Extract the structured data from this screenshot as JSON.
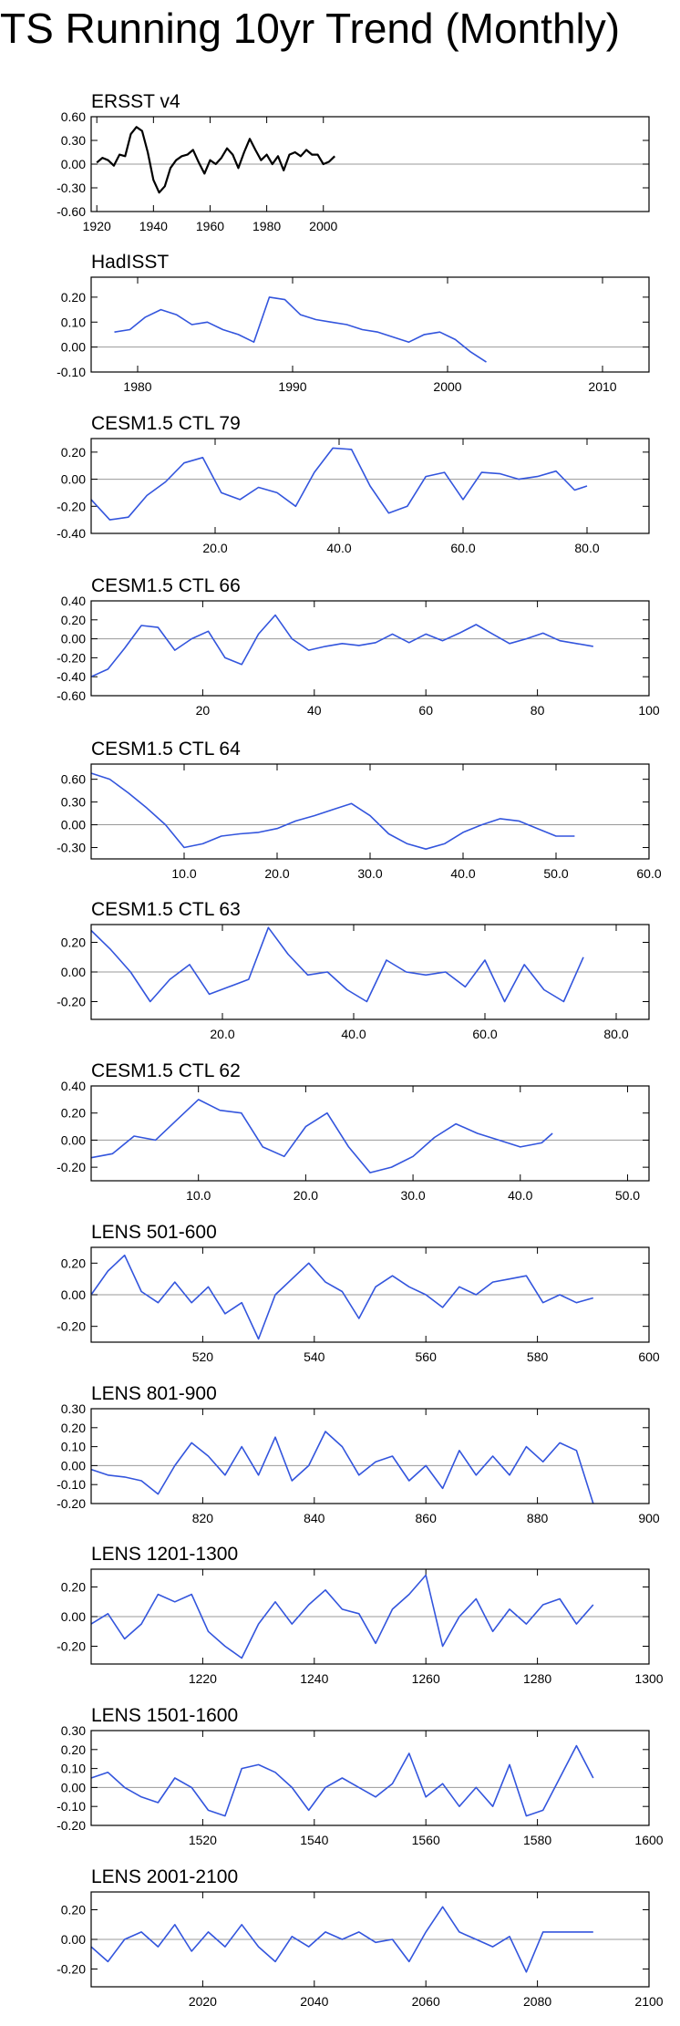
{
  "page_title": "TS Running 10yr Trend (Monthly)",
  "colors": {
    "obs_line": "#000000",
    "model_line": "#3355dd",
    "zero_line": "#999999",
    "frame": "#000000"
  },
  "chart_data": [
    {
      "type": "line",
      "title": "ERSST v4",
      "line_color": "#000000",
      "xlim": [
        1918,
        2115
      ],
      "ylim": [
        -0.6,
        0.6
      ],
      "xticks": [
        1920,
        1940,
        1960,
        1980,
        2000
      ],
      "yticks": [
        0.6,
        0.3,
        0.0,
        -0.3,
        -0.6
      ],
      "xtick_labels": [
        "1920",
        "1940",
        "1960",
        "1980",
        "2000"
      ],
      "ytick_labels": [
        "0.60",
        "0.30",
        "0.00",
        "-0.30",
        "-0.60"
      ],
      "x": [
        1920,
        1922,
        1924,
        1926,
        1928,
        1930,
        1932,
        1934,
        1936,
        1938,
        1940,
        1942,
        1944,
        1946,
        1948,
        1950,
        1952,
        1954,
        1956,
        1958,
        1960,
        1962,
        1964,
        1966,
        1968,
        1970,
        1972,
        1974,
        1976,
        1978,
        1980,
        1982,
        1984,
        1986,
        1988,
        1990,
        1992,
        1994,
        1996,
        1998,
        2000,
        2002,
        2004
      ],
      "y": [
        0.02,
        0.08,
        0.05,
        -0.02,
        0.12,
        0.1,
        0.38,
        0.47,
        0.42,
        0.15,
        -0.2,
        -0.36,
        -0.28,
        -0.05,
        0.05,
        0.1,
        0.12,
        0.18,
        0.02,
        -0.12,
        0.05,
        0.0,
        0.08,
        0.2,
        0.12,
        -0.05,
        0.15,
        0.32,
        0.18,
        0.05,
        0.12,
        0.0,
        0.1,
        -0.08,
        0.12,
        0.15,
        0.1,
        0.18,
        0.12,
        0.12,
        0.0,
        0.03,
        0.1
      ]
    },
    {
      "type": "line",
      "title": "HadISST",
      "line_color": "#3355dd",
      "xlim": [
        1977,
        2013
      ],
      "ylim": [
        -0.1,
        0.28
      ],
      "xticks": [
        1980,
        1990,
        2000,
        2010
      ],
      "yticks": [
        0.2,
        0.1,
        0.0,
        -0.1
      ],
      "xtick_labels": [
        "1980",
        "1990",
        "2000",
        "2010"
      ],
      "ytick_labels": [
        "0.20",
        "0.10",
        "0.00",
        "-0.10"
      ],
      "x": [
        1978.5,
        1979.5,
        1980.5,
        1981.5,
        1982.5,
        1983.5,
        1984.5,
        1985.5,
        1986.5,
        1987.5,
        1988.5,
        1989.5,
        1990.5,
        1991.5,
        1992.5,
        1993.5,
        1994.5,
        1995.5,
        1996.5,
        1997.5,
        1998.5,
        1999.5,
        2000.5,
        2001.5,
        2002.5
      ],
      "y": [
        0.06,
        0.07,
        0.12,
        0.15,
        0.13,
        0.09,
        0.1,
        0.07,
        0.05,
        0.02,
        0.2,
        0.19,
        0.13,
        0.11,
        0.1,
        0.09,
        0.07,
        0.06,
        0.04,
        0.02,
        0.05,
        0.06,
        0.03,
        -0.02,
        -0.06
      ]
    },
    {
      "type": "line",
      "title": "CESM1.5 CTL 79",
      "line_color": "#3355dd",
      "xlim": [
        0,
        90
      ],
      "ylim": [
        -0.4,
        0.3
      ],
      "xticks": [
        20,
        40,
        60,
        80
      ],
      "yticks": [
        0.2,
        0.0,
        -0.2,
        -0.4
      ],
      "xtick_labels": [
        "20.0",
        "40.0",
        "60.0",
        "80.0"
      ],
      "ytick_labels": [
        "0.20",
        "0.00",
        "-0.20",
        "-0.40"
      ],
      "x": [
        0,
        3,
        6,
        9,
        12,
        15,
        18,
        21,
        24,
        27,
        30,
        33,
        36,
        39,
        42,
        45,
        48,
        51,
        54,
        57,
        60,
        63,
        66,
        69,
        72,
        75,
        78,
        80
      ],
      "y": [
        -0.15,
        -0.3,
        -0.28,
        -0.12,
        -0.02,
        0.12,
        0.16,
        -0.1,
        -0.15,
        -0.06,
        -0.1,
        -0.2,
        0.05,
        0.23,
        0.22,
        -0.05,
        -0.25,
        -0.2,
        0.02,
        0.05,
        -0.15,
        0.05,
        0.04,
        0.0,
        0.02,
        0.06,
        -0.08,
        -0.05
      ]
    },
    {
      "type": "line",
      "title": "CESM1.5 CTL 66",
      "line_color": "#3355dd",
      "xlim": [
        0,
        100
      ],
      "ylim": [
        -0.6,
        0.4
      ],
      "xticks": [
        20,
        40,
        60,
        80,
        100
      ],
      "yticks": [
        0.4,
        0.2,
        0.0,
        -0.2,
        -0.4,
        -0.6
      ],
      "xtick_labels": [
        "20",
        "40",
        "60",
        "80",
        "100"
      ],
      "ytick_labels": [
        "0.40",
        "0.20",
        "0.00",
        "-0.20",
        "-0.40",
        "-0.60"
      ],
      "x": [
        0,
        3,
        6,
        9,
        12,
        15,
        18,
        21,
        24,
        27,
        30,
        33,
        36,
        39,
        42,
        45,
        48,
        51,
        54,
        57,
        60,
        63,
        66,
        69,
        72,
        75,
        78,
        81,
        84,
        87,
        90
      ],
      "y": [
        -0.4,
        -0.32,
        -0.1,
        0.14,
        0.12,
        -0.12,
        0.0,
        0.08,
        -0.2,
        -0.27,
        0.05,
        0.25,
        0.0,
        -0.12,
        -0.08,
        -0.05,
        -0.07,
        -0.04,
        0.05,
        -0.04,
        0.05,
        -0.02,
        0.06,
        0.15,
        0.05,
        -0.05,
        0.0,
        0.06,
        -0.02,
        -0.05,
        -0.08
      ]
    },
    {
      "type": "line",
      "title": "CESM1.5 CTL 64",
      "line_color": "#3355dd",
      "xlim": [
        0,
        60
      ],
      "ylim": [
        -0.45,
        0.8
      ],
      "xticks": [
        10,
        20,
        30,
        40,
        50,
        60
      ],
      "yticks": [
        0.6,
        0.3,
        0.0,
        -0.3
      ],
      "xtick_labels": [
        "10.0",
        "20.0",
        "30.0",
        "40.0",
        "50.0",
        "60.0"
      ],
      "ytick_labels": [
        "0.60",
        "0.30",
        "0.00",
        "-0.30"
      ],
      "x": [
        0,
        2,
        4,
        6,
        8,
        10,
        12,
        14,
        16,
        18,
        20,
        22,
        24,
        26,
        28,
        30,
        32,
        34,
        36,
        38,
        40,
        42,
        44,
        46,
        48,
        50,
        52
      ],
      "y": [
        0.68,
        0.6,
        0.42,
        0.22,
        0.0,
        -0.3,
        -0.25,
        -0.15,
        -0.12,
        -0.1,
        -0.05,
        0.05,
        0.12,
        0.2,
        0.28,
        0.12,
        -0.12,
        -0.25,
        -0.32,
        -0.25,
        -0.1,
        0.0,
        0.08,
        0.05,
        -0.05,
        -0.15,
        -0.15
      ]
    },
    {
      "type": "line",
      "title": "CESM1.5 CTL 63",
      "line_color": "#3355dd",
      "xlim": [
        0,
        85
      ],
      "ylim": [
        -0.32,
        0.32
      ],
      "xticks": [
        20,
        40,
        60,
        80
      ],
      "yticks": [
        0.2,
        0.0,
        -0.2
      ],
      "xtick_labels": [
        "20.0",
        "40.0",
        "60.0",
        "80.0"
      ],
      "ytick_labels": [
        "0.20",
        "0.00",
        "-0.20"
      ],
      "x": [
        0,
        3,
        6,
        9,
        12,
        15,
        18,
        21,
        24,
        27,
        30,
        33,
        36,
        39,
        42,
        45,
        48,
        51,
        54,
        57,
        60,
        63,
        66,
        69,
        72,
        75
      ],
      "y": [
        0.28,
        0.15,
        0.0,
        -0.2,
        -0.05,
        0.05,
        -0.15,
        -0.1,
        -0.05,
        0.3,
        0.12,
        -0.02,
        0.0,
        -0.12,
        -0.2,
        0.08,
        0.0,
        -0.02,
        0.0,
        -0.1,
        0.08,
        -0.2,
        0.05,
        -0.12,
        -0.2,
        0.1
      ]
    },
    {
      "type": "line",
      "title": "CESM1.5 CTL 62",
      "line_color": "#3355dd",
      "xlim": [
        0,
        52
      ],
      "ylim": [
        -0.3,
        0.4
      ],
      "xticks": [
        10,
        20,
        30,
        40,
        50
      ],
      "yticks": [
        0.4,
        0.2,
        0.0,
        -0.2
      ],
      "xtick_labels": [
        "10.0",
        "20.0",
        "30.0",
        "40.0",
        "50.0"
      ],
      "ytick_labels": [
        "0.40",
        "0.20",
        "0.00",
        "-0.20"
      ],
      "x": [
        0,
        2,
        4,
        6,
        8,
        10,
        12,
        14,
        16,
        18,
        20,
        22,
        24,
        26,
        28,
        30,
        32,
        34,
        36,
        38,
        40,
        42,
        43
      ],
      "y": [
        -0.13,
        -0.1,
        0.03,
        0.0,
        0.15,
        0.3,
        0.22,
        0.2,
        -0.05,
        -0.12,
        0.1,
        0.2,
        -0.05,
        -0.24,
        -0.2,
        -0.12,
        0.02,
        0.12,
        0.05,
        0.0,
        -0.05,
        -0.02,
        0.05
      ]
    },
    {
      "type": "line",
      "title": "LENS 501-600",
      "line_color": "#3355dd",
      "xlim": [
        500,
        600
      ],
      "ylim": [
        -0.3,
        0.3
      ],
      "xticks": [
        520,
        540,
        560,
        580,
        600
      ],
      "yticks": [
        0.2,
        0.0,
        -0.2
      ],
      "xtick_labels": [
        "520",
        "540",
        "560",
        "580",
        "600"
      ],
      "ytick_labels": [
        "0.20",
        "0.00",
        "-0.20"
      ],
      "x": [
        500,
        503,
        506,
        509,
        512,
        515,
        518,
        521,
        524,
        527,
        530,
        533,
        536,
        539,
        542,
        545,
        548,
        551,
        554,
        557,
        560,
        563,
        566,
        569,
        572,
        575,
        578,
        581,
        584,
        587,
        590
      ],
      "y": [
        0.0,
        0.15,
        0.25,
        0.02,
        -0.05,
        0.08,
        -0.05,
        0.05,
        -0.12,
        -0.05,
        -0.28,
        0.0,
        0.1,
        0.2,
        0.08,
        0.02,
        -0.15,
        0.05,
        0.12,
        0.05,
        0.0,
        -0.08,
        0.05,
        0.0,
        0.08,
        0.1,
        0.12,
        -0.05,
        0.0,
        -0.05,
        -0.02
      ]
    },
    {
      "type": "line",
      "title": "LENS 801-900",
      "line_color": "#3355dd",
      "xlim": [
        800,
        900
      ],
      "ylim": [
        -0.2,
        0.3
      ],
      "xticks": [
        820,
        840,
        860,
        880,
        900
      ],
      "yticks": [
        0.3,
        0.2,
        0.1,
        0.0,
        -0.1,
        -0.2
      ],
      "xtick_labels": [
        "820",
        "840",
        "860",
        "880",
        "900"
      ],
      "ytick_labels": [
        "0.30",
        "0.20",
        "0.10",
        "0.00",
        "-0.10",
        "-0.20"
      ],
      "x": [
        800,
        803,
        806,
        809,
        812,
        815,
        818,
        821,
        824,
        827,
        830,
        833,
        836,
        839,
        842,
        845,
        848,
        851,
        854,
        857,
        860,
        863,
        866,
        869,
        872,
        875,
        878,
        881,
        884,
        887,
        890
      ],
      "y": [
        -0.02,
        -0.05,
        -0.06,
        -0.08,
        -0.15,
        0.0,
        0.12,
        0.05,
        -0.05,
        0.1,
        -0.05,
        0.15,
        -0.08,
        0.0,
        0.18,
        0.1,
        -0.05,
        0.02,
        0.05,
        -0.08,
        0.0,
        -0.12,
        0.08,
        -0.05,
        0.05,
        -0.05,
        0.1,
        0.02,
        0.12,
        0.08,
        -0.2
      ]
    },
    {
      "type": "line",
      "title": "LENS 1201-1300",
      "line_color": "#3355dd",
      "xlim": [
        1200,
        1300
      ],
      "ylim": [
        -0.32,
        0.32
      ],
      "xticks": [
        1220,
        1240,
        1260,
        1280,
        1300
      ],
      "yticks": [
        0.2,
        0.0,
        -0.2
      ],
      "xtick_labels": [
        "1220",
        "1240",
        "1260",
        "1280",
        "1300"
      ],
      "ytick_labels": [
        "0.20",
        "0.00",
        "-0.20"
      ],
      "x": [
        1200,
        1203,
        1206,
        1209,
        1212,
        1215,
        1218,
        1221,
        1224,
        1227,
        1230,
        1233,
        1236,
        1239,
        1242,
        1245,
        1248,
        1251,
        1254,
        1257,
        1260,
        1263,
        1266,
        1269,
        1272,
        1275,
        1278,
        1281,
        1284,
        1287,
        1290
      ],
      "y": [
        -0.05,
        0.02,
        -0.15,
        -0.05,
        0.15,
        0.1,
        0.15,
        -0.1,
        -0.2,
        -0.28,
        -0.05,
        0.1,
        -0.05,
        0.08,
        0.18,
        0.05,
        0.02,
        -0.18,
        0.05,
        0.15,
        0.28,
        -0.2,
        0.0,
        0.12,
        -0.1,
        0.05,
        -0.05,
        0.08,
        0.12,
        -0.05,
        0.08
      ]
    },
    {
      "type": "line",
      "title": "LENS 1501-1600",
      "line_color": "#3355dd",
      "xlim": [
        1500,
        1600
      ],
      "ylim": [
        -0.2,
        0.3
      ],
      "xticks": [
        1520,
        1540,
        1560,
        1580,
        1600
      ],
      "yticks": [
        0.3,
        0.2,
        0.1,
        0.0,
        -0.1,
        -0.2
      ],
      "xtick_labels": [
        "1520",
        "1540",
        "1560",
        "1580",
        "1600"
      ],
      "ytick_labels": [
        "0.30",
        "0.20",
        "0.10",
        "0.00",
        "-0.10",
        "-0.20"
      ],
      "x": [
        1500,
        1503,
        1506,
        1509,
        1512,
        1515,
        1518,
        1521,
        1524,
        1527,
        1530,
        1533,
        1536,
        1539,
        1542,
        1545,
        1548,
        1551,
        1554,
        1557,
        1560,
        1563,
        1566,
        1569,
        1572,
        1575,
        1578,
        1581,
        1584,
        1587,
        1590
      ],
      "y": [
        0.05,
        0.08,
        0.0,
        -0.05,
        -0.08,
        0.05,
        0.0,
        -0.12,
        -0.15,
        0.1,
        0.12,
        0.08,
        0.0,
        -0.12,
        0.0,
        0.05,
        0.0,
        -0.05,
        0.02,
        0.18,
        -0.05,
        0.02,
        -0.1,
        0.0,
        -0.1,
        0.12,
        -0.15,
        -0.12,
        0.05,
        0.22,
        0.05
      ]
    },
    {
      "type": "line",
      "title": "LENS 2001-2100",
      "line_color": "#3355dd",
      "xlim": [
        2000,
        2100
      ],
      "ylim": [
        -0.32,
        0.32
      ],
      "xticks": [
        2020,
        2040,
        2060,
        2080,
        2100
      ],
      "yticks": [
        0.2,
        0.0,
        -0.2
      ],
      "xtick_labels": [
        "2020",
        "2040",
        "2060",
        "2080",
        "2100"
      ],
      "ytick_labels": [
        "0.20",
        "0.00",
        "-0.20"
      ],
      "x": [
        2000,
        2003,
        2006,
        2009,
        2012,
        2015,
        2018,
        2021,
        2024,
        2027,
        2030,
        2033,
        2036,
        2039,
        2042,
        2045,
        2048,
        2051,
        2054,
        2057,
        2060,
        2063,
        2066,
        2069,
        2072,
        2075,
        2078,
        2081,
        2084,
        2087,
        2090
      ],
      "y": [
        -0.05,
        -0.15,
        0.0,
        0.05,
        -0.05,
        0.1,
        -0.08,
        0.05,
        -0.05,
        0.1,
        -0.05,
        -0.15,
        0.02,
        -0.05,
        0.05,
        0.0,
        0.05,
        -0.02,
        0.0,
        -0.15,
        0.05,
        0.22,
        0.05,
        0.0,
        -0.05,
        0.02,
        -0.22,
        0.05,
        0.05,
        0.05,
        0.05
      ]
    }
  ]
}
